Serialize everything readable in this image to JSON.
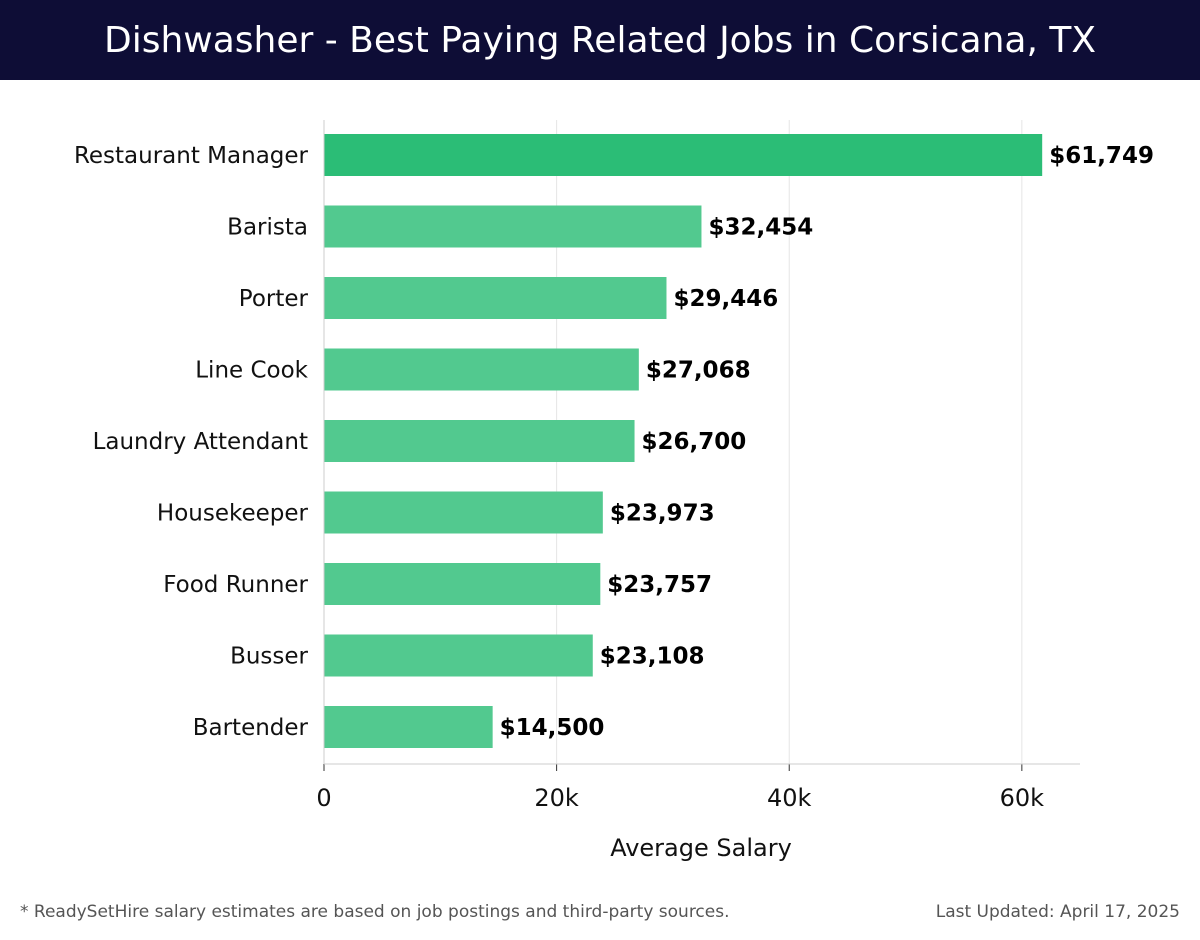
{
  "header": {
    "title": "Dishwasher - Best Paying Related Jobs in Corsicana, TX"
  },
  "chart_data": {
    "type": "bar",
    "orientation": "horizontal",
    "categories": [
      "Restaurant Manager",
      "Barista",
      "Porter",
      "Line Cook",
      "Laundry Attendant",
      "Housekeeper",
      "Food Runner",
      "Busser",
      "Bartender"
    ],
    "values": [
      61749,
      32454,
      29446,
      27068,
      26700,
      23973,
      23757,
      23108,
      14500
    ],
    "data_labels": [
      "$61,749",
      "$32,454",
      "$29,446",
      "$27,068",
      "$26,700",
      "$23,973",
      "$23,757",
      "$23,108",
      "$14,500"
    ],
    "xlabel": "Average Salary",
    "ylabel": "",
    "xlim": [
      0,
      65000
    ],
    "xticks": [
      0,
      20000,
      40000,
      60000
    ],
    "xtick_labels": [
      "0",
      "20k",
      "40k",
      "60k"
    ],
    "grid": "vertical",
    "colors": {
      "highlight_bar": "#2bbd76",
      "bar": "#52c98f",
      "grid": "#e6e6e6",
      "axis": "#cccccc",
      "header_bg": "#0e0d36"
    }
  },
  "footer": {
    "note": "* ReadySetHire salary estimates are based on job postings and third-party sources.",
    "updated": "Last Updated: April 17, 2025"
  }
}
